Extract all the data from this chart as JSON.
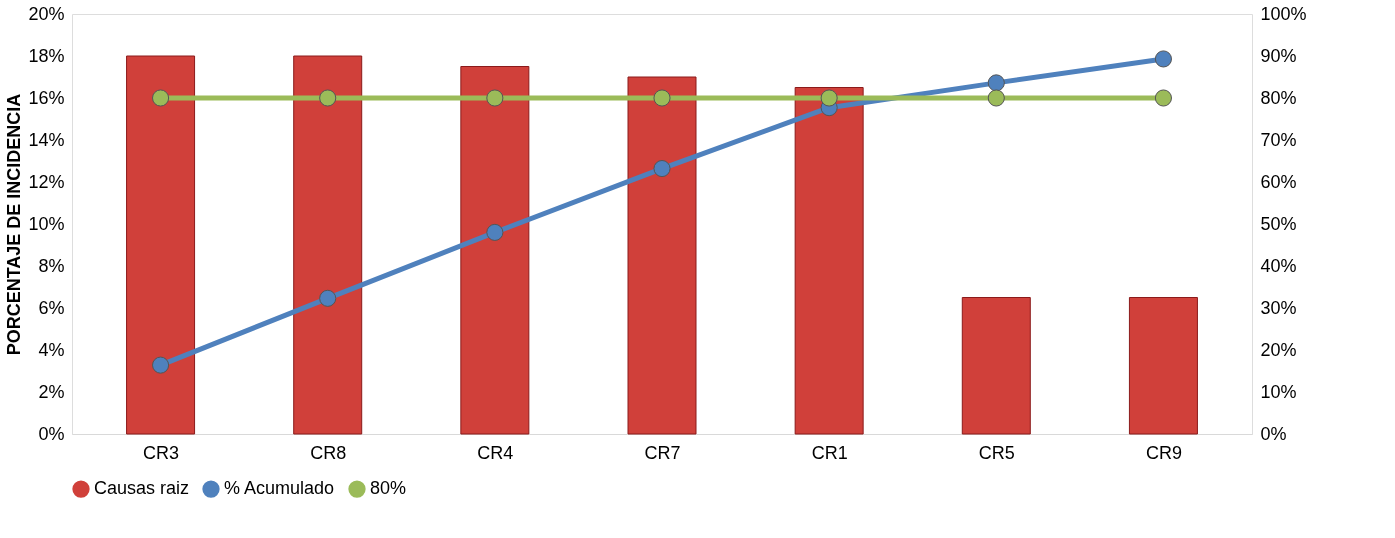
{
  "chart_data": {
    "type": "bar",
    "ylabel": "PORCENTAJE DE INCIDENCIA",
    "categories": [
      "CR3",
      "CR8",
      "CR4",
      "CR7",
      "CR1",
      "CR5",
      "CR9"
    ],
    "series": [
      {
        "name": "Causas raiz",
        "color": "#d0403a",
        "values": [
          18,
          18,
          17.5,
          17,
          16.5,
          6.5,
          6.5
        ]
      },
      {
        "name": "% Acumulado",
        "type": "line",
        "axis": "y2",
        "color": "#4f81bd",
        "values": [
          16.4,
          32.3,
          48,
          63.2,
          77.7,
          83.6,
          89.3
        ]
      },
      {
        "name": "80%",
        "type": "line",
        "axis": "y2",
        "color": "#9bbb59",
        "values": [
          80,
          80,
          80,
          80,
          80,
          80,
          80
        ]
      }
    ],
    "ylim": [
      0,
      20
    ],
    "yticks": [
      {
        "value": 0,
        "label": "0%"
      },
      {
        "value": 2,
        "label": "2%"
      },
      {
        "value": 4,
        "label": "4%"
      },
      {
        "value": 6,
        "label": "6%"
      },
      {
        "value": 8,
        "label": "8%"
      },
      {
        "value": 10,
        "label": "10%"
      },
      {
        "value": 12,
        "label": "12%"
      },
      {
        "value": 14,
        "label": "14%"
      },
      {
        "value": 16,
        "label": "16%"
      },
      {
        "value": 18,
        "label": "18%"
      },
      {
        "value": 20,
        "label": "20%"
      }
    ],
    "y2lim": [
      0,
      100
    ],
    "y2ticks": [
      {
        "value": 0,
        "label": "0%"
      },
      {
        "value": 10,
        "label": "10%"
      },
      {
        "value": 20,
        "label": "20%"
      },
      {
        "value": 30,
        "label": "30%"
      },
      {
        "value": 40,
        "label": "40%"
      },
      {
        "value": 50,
        "label": "50%"
      },
      {
        "value": 60,
        "label": "60%"
      },
      {
        "value": 70,
        "label": "70%"
      },
      {
        "value": 80,
        "label": "80%"
      },
      {
        "value": 90,
        "label": "90%"
      },
      {
        "value": 100,
        "label": "100%"
      }
    ],
    "grid": false,
    "legend": "bottom",
    "marker": "circle",
    "line_style": "solid"
  }
}
